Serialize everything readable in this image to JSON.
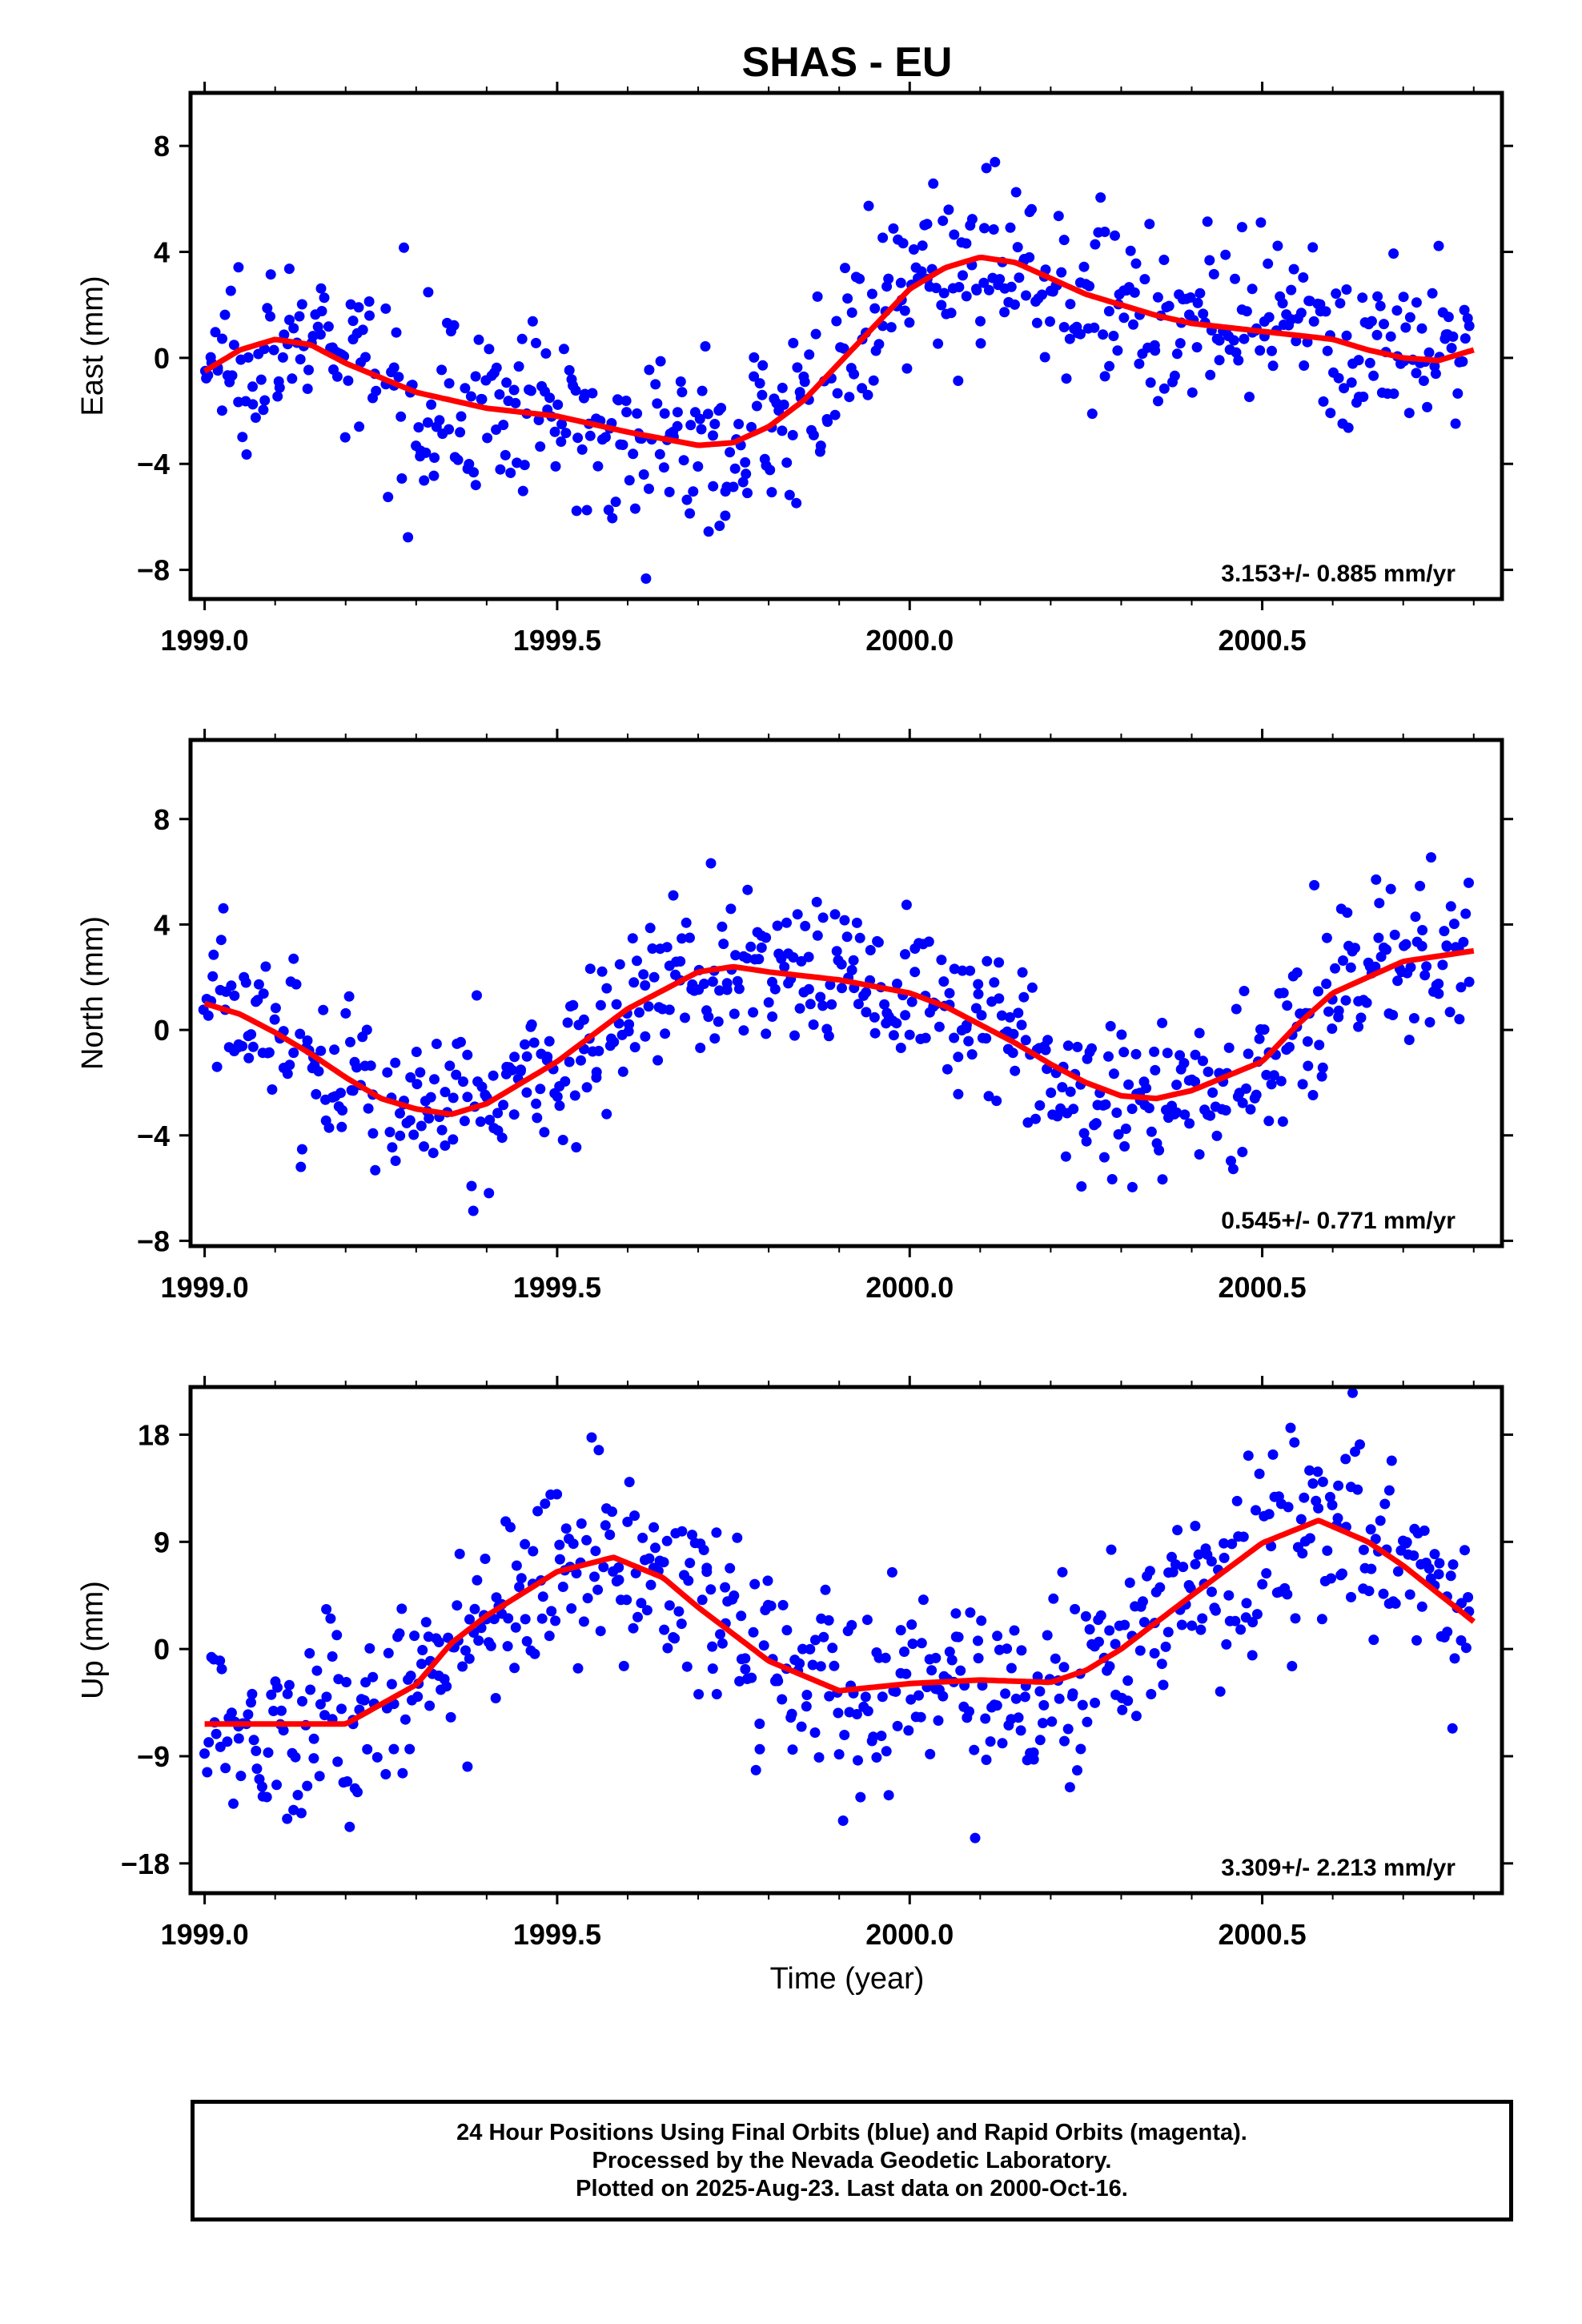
{
  "title": "SHAS - EU",
  "x_axis_label": "Time (year)",
  "footer": {
    "line1": "24 Hour Positions Using Final Orbits (blue) and Rapid Orbits (magenta).",
    "line2": "Processed by the Nevada Geodetic Laboratory.",
    "line3": "Plotted on 2025-Aug-23. Last data on 2000-Oct-16."
  },
  "colors": {
    "points": "#0000ff",
    "fit": "#ff0000",
    "frame": "#000000"
  },
  "chart_data": [
    {
      "type": "scatter",
      "ylabel": "East (mm)",
      "xlim": [
        1998.98,
        2000.84
      ],
      "ylim": [
        -9.1,
        10.0
      ],
      "yticks": [
        8,
        4,
        0,
        -4,
        -8
      ],
      "xticks": [
        1999.0,
        1999.5,
        2000.0,
        2000.5
      ],
      "xtick_labels": [
        "1999.0",
        "1999.5",
        "2000.0",
        "2000.5"
      ],
      "rate": "3.153+/- 0.885 mm/yr",
      "noise": 1.6,
      "series": [
        {
          "role": "fit",
          "x": [
            1999.0,
            1999.05,
            1999.1,
            1999.15,
            1999.2,
            1999.3,
            1999.4,
            1999.5,
            1999.6,
            1999.7,
            1999.75,
            1999.8,
            1999.85,
            1999.9,
            1999.95,
            2000.0,
            2000.05,
            2000.1,
            2000.15,
            2000.2,
            2000.25,
            2000.3,
            2000.35,
            2000.4,
            2000.5,
            2000.6,
            2000.65,
            2000.7,
            2000.75,
            2000.8
          ],
          "y": [
            -0.5,
            0.3,
            0.7,
            0.5,
            -0.2,
            -1.3,
            -1.9,
            -2.2,
            -2.8,
            -3.3,
            -3.2,
            -2.6,
            -1.6,
            -0.2,
            1.2,
            2.6,
            3.4,
            3.8,
            3.6,
            3.0,
            2.4,
            2.0,
            1.6,
            1.3,
            1.0,
            0.7,
            0.3,
            0.0,
            -0.1,
            0.3
          ]
        }
      ]
    },
    {
      "type": "scatter",
      "ylabel": "North (mm)",
      "xlim": [
        1998.98,
        2000.84
      ],
      "ylim": [
        -8.2,
        11.0
      ],
      "yticks": [
        8,
        4,
        0,
        -4,
        -8
      ],
      "xticks": [
        1999.0,
        1999.5,
        2000.0,
        2000.5
      ],
      "xtick_labels": [
        "1999.0",
        "1999.5",
        "2000.0",
        "2000.5"
      ],
      "rate": "0.545+/- 0.771 mm/yr",
      "noise": 1.5,
      "series": [
        {
          "role": "fit",
          "x": [
            1999.0,
            1999.05,
            1999.1,
            1999.15,
            1999.2,
            1999.25,
            1999.3,
            1999.35,
            1999.4,
            1999.5,
            1999.6,
            1999.7,
            1999.75,
            1999.8,
            1999.9,
            2000.0,
            2000.05,
            2000.1,
            2000.15,
            2000.2,
            2000.25,
            2000.3,
            2000.35,
            2000.4,
            2000.5,
            2000.55,
            2000.6,
            2000.7,
            2000.8
          ],
          "y": [
            1.0,
            0.6,
            -0.1,
            -0.9,
            -1.8,
            -2.6,
            -3.0,
            -3.2,
            -2.8,
            -1.2,
            0.8,
            2.2,
            2.4,
            2.2,
            1.9,
            1.4,
            0.9,
            0.2,
            -0.5,
            -1.3,
            -2.0,
            -2.5,
            -2.6,
            -2.3,
            -1.2,
            0.2,
            1.4,
            2.6,
            3.0
          ]
        }
      ]
    },
    {
      "type": "scatter",
      "ylabel": "Up (mm)",
      "xlim": [
        1998.98,
        2000.84
      ],
      "ylim": [
        -20.5,
        22.0
      ],
      "yticks": [
        18,
        9,
        0,
        -9,
        -18
      ],
      "xticks": [
        1999.0,
        1999.5,
        2000.0,
        2000.5
      ],
      "xtick_labels": [
        "1999.0",
        "1999.5",
        "2000.0",
        "2000.5"
      ],
      "rate": "3.309+/- 2.213 mm/yr",
      "noise": 4.0,
      "series": [
        {
          "role": "fit",
          "x": [
            1999.0,
            1999.1,
            1999.2,
            1999.3,
            1999.35,
            1999.4,
            1999.5,
            1999.58,
            1999.65,
            1999.7,
            1999.8,
            1999.9,
            2000.0,
            2000.1,
            2000.2,
            2000.25,
            2000.3,
            2000.4,
            2000.5,
            2000.58,
            2000.65,
            2000.7,
            2000.8
          ],
          "y": [
            -6.3,
            -6.3,
            -6.3,
            -3.0,
            0.5,
            2.8,
            6.5,
            7.7,
            6.0,
            3.5,
            -1.0,
            -3.5,
            -2.9,
            -2.6,
            -2.8,
            -1.8,
            0.0,
            4.5,
            8.9,
            10.8,
            9.0,
            7.0,
            2.3
          ]
        }
      ]
    }
  ]
}
